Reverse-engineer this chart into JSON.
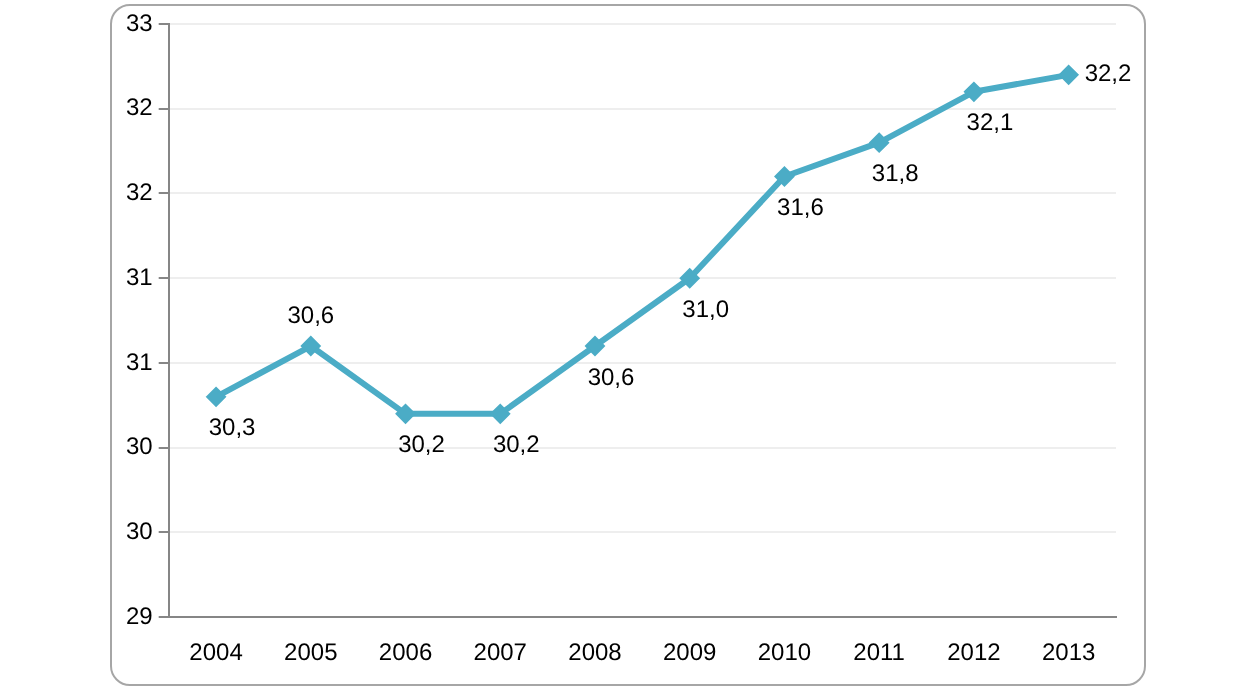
{
  "chart_data": {
    "type": "line",
    "categories": [
      "2004",
      "2005",
      "2006",
      "2007",
      "2008",
      "2009",
      "2010",
      "2011",
      "2012",
      "2013"
    ],
    "series": [
      {
        "color": "#4bacc6",
        "values": [
          30.3,
          30.6,
          30.2,
          30.2,
          30.6,
          31.0,
          31.6,
          31.8,
          32.1,
          32.2
        ],
        "value_labels": [
          "30,3",
          "30,6",
          "30,2",
          "30,2",
          "30,6",
          "31,0",
          "31,6",
          "31,8",
          "32,1",
          "32,2"
        ]
      }
    ],
    "ylim": [
      29,
      32.5
    ],
    "yticks": [
      29,
      {
        "value": 29.5,
        "label": "30"
      },
      30,
      {
        "value": 30.5,
        "label": "31"
      },
      31,
      {
        "value": 31.5,
        "label": "32"
      },
      32,
      {
        "value": 32.5,
        "label": "33"
      }
    ],
    "grid": "y",
    "legend": false,
    "marker": "diamond",
    "line_style": "solid"
  }
}
